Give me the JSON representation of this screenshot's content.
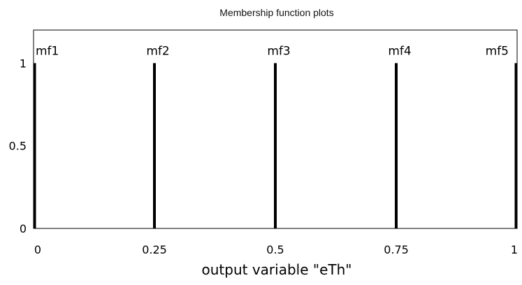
{
  "chart_data": {
    "type": "line",
    "title": "Membership function plots",
    "xlabel": "output variable \"eTh\"",
    "ylabel": "",
    "xlim": [
      0,
      1
    ],
    "ylim": [
      0,
      1.2
    ],
    "x_ticks": [
      "0",
      "0.25",
      "0.5",
      "0.75",
      "1"
    ],
    "x_tick_values": [
      0,
      0.25,
      0.5,
      0.75,
      1
    ],
    "y_ticks": [
      "0",
      "0.5",
      "1"
    ],
    "y_tick_values": [
      0,
      0.5,
      1
    ],
    "grid": false,
    "series": [
      {
        "name": "mf1",
        "x": [
          0,
          0
        ],
        "y": [
          0,
          1
        ]
      },
      {
        "name": "mf2",
        "x": [
          0.25,
          0.25
        ],
        "y": [
          0,
          1
        ]
      },
      {
        "name": "mf3",
        "x": [
          0.5,
          0.5
        ],
        "y": [
          0,
          1
        ]
      },
      {
        "name": "mf4",
        "x": [
          0.75,
          0.75
        ],
        "y": [
          0,
          1
        ]
      },
      {
        "name": "mf5",
        "x": [
          1,
          1
        ],
        "y": [
          0,
          1
        ]
      }
    ],
    "line_color": "#000000"
  }
}
